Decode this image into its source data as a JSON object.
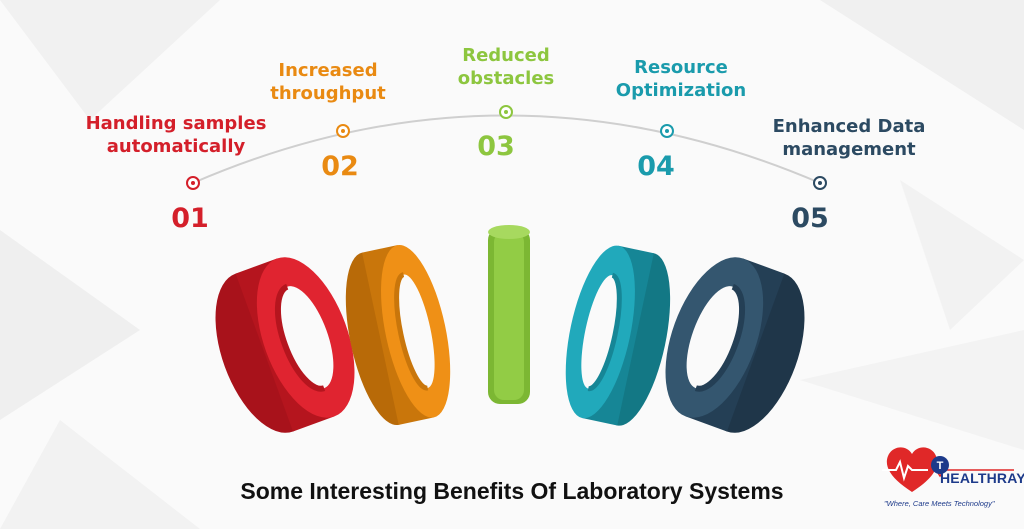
{
  "colors": {
    "red": "#d41f2a",
    "orange": "#e98a12",
    "green": "#8dc63f",
    "teal": "#1a9bac",
    "navy": "#2c4a62",
    "brand_blue": "#1d3a8a",
    "brand_red": "#e02828"
  },
  "steps": [
    {
      "number": "01",
      "label_line1": "Handling samples",
      "label_line2": "automatically",
      "color": "#d41f2a"
    },
    {
      "number": "02",
      "label_line1": "Increased",
      "label_line2": "throughput",
      "color": "#e98a12"
    },
    {
      "number": "03",
      "label_line1": "Reduced",
      "label_line2": "obstacles",
      "color": "#8dc63f"
    },
    {
      "number": "04",
      "label_line1": "Resource",
      "label_line2": "Optimization",
      "color": "#1a9bac"
    },
    {
      "number": "05",
      "label_line1": "Enhanced Data",
      "label_line2": "management",
      "color": "#2c4a62"
    }
  ],
  "title": "Some Interesting Benefits Of Laboratory Systems",
  "brand": {
    "logo_letter": "T",
    "name": "HEALTHRAY",
    "tagline": "\"Where, Care Meets Technology\""
  }
}
